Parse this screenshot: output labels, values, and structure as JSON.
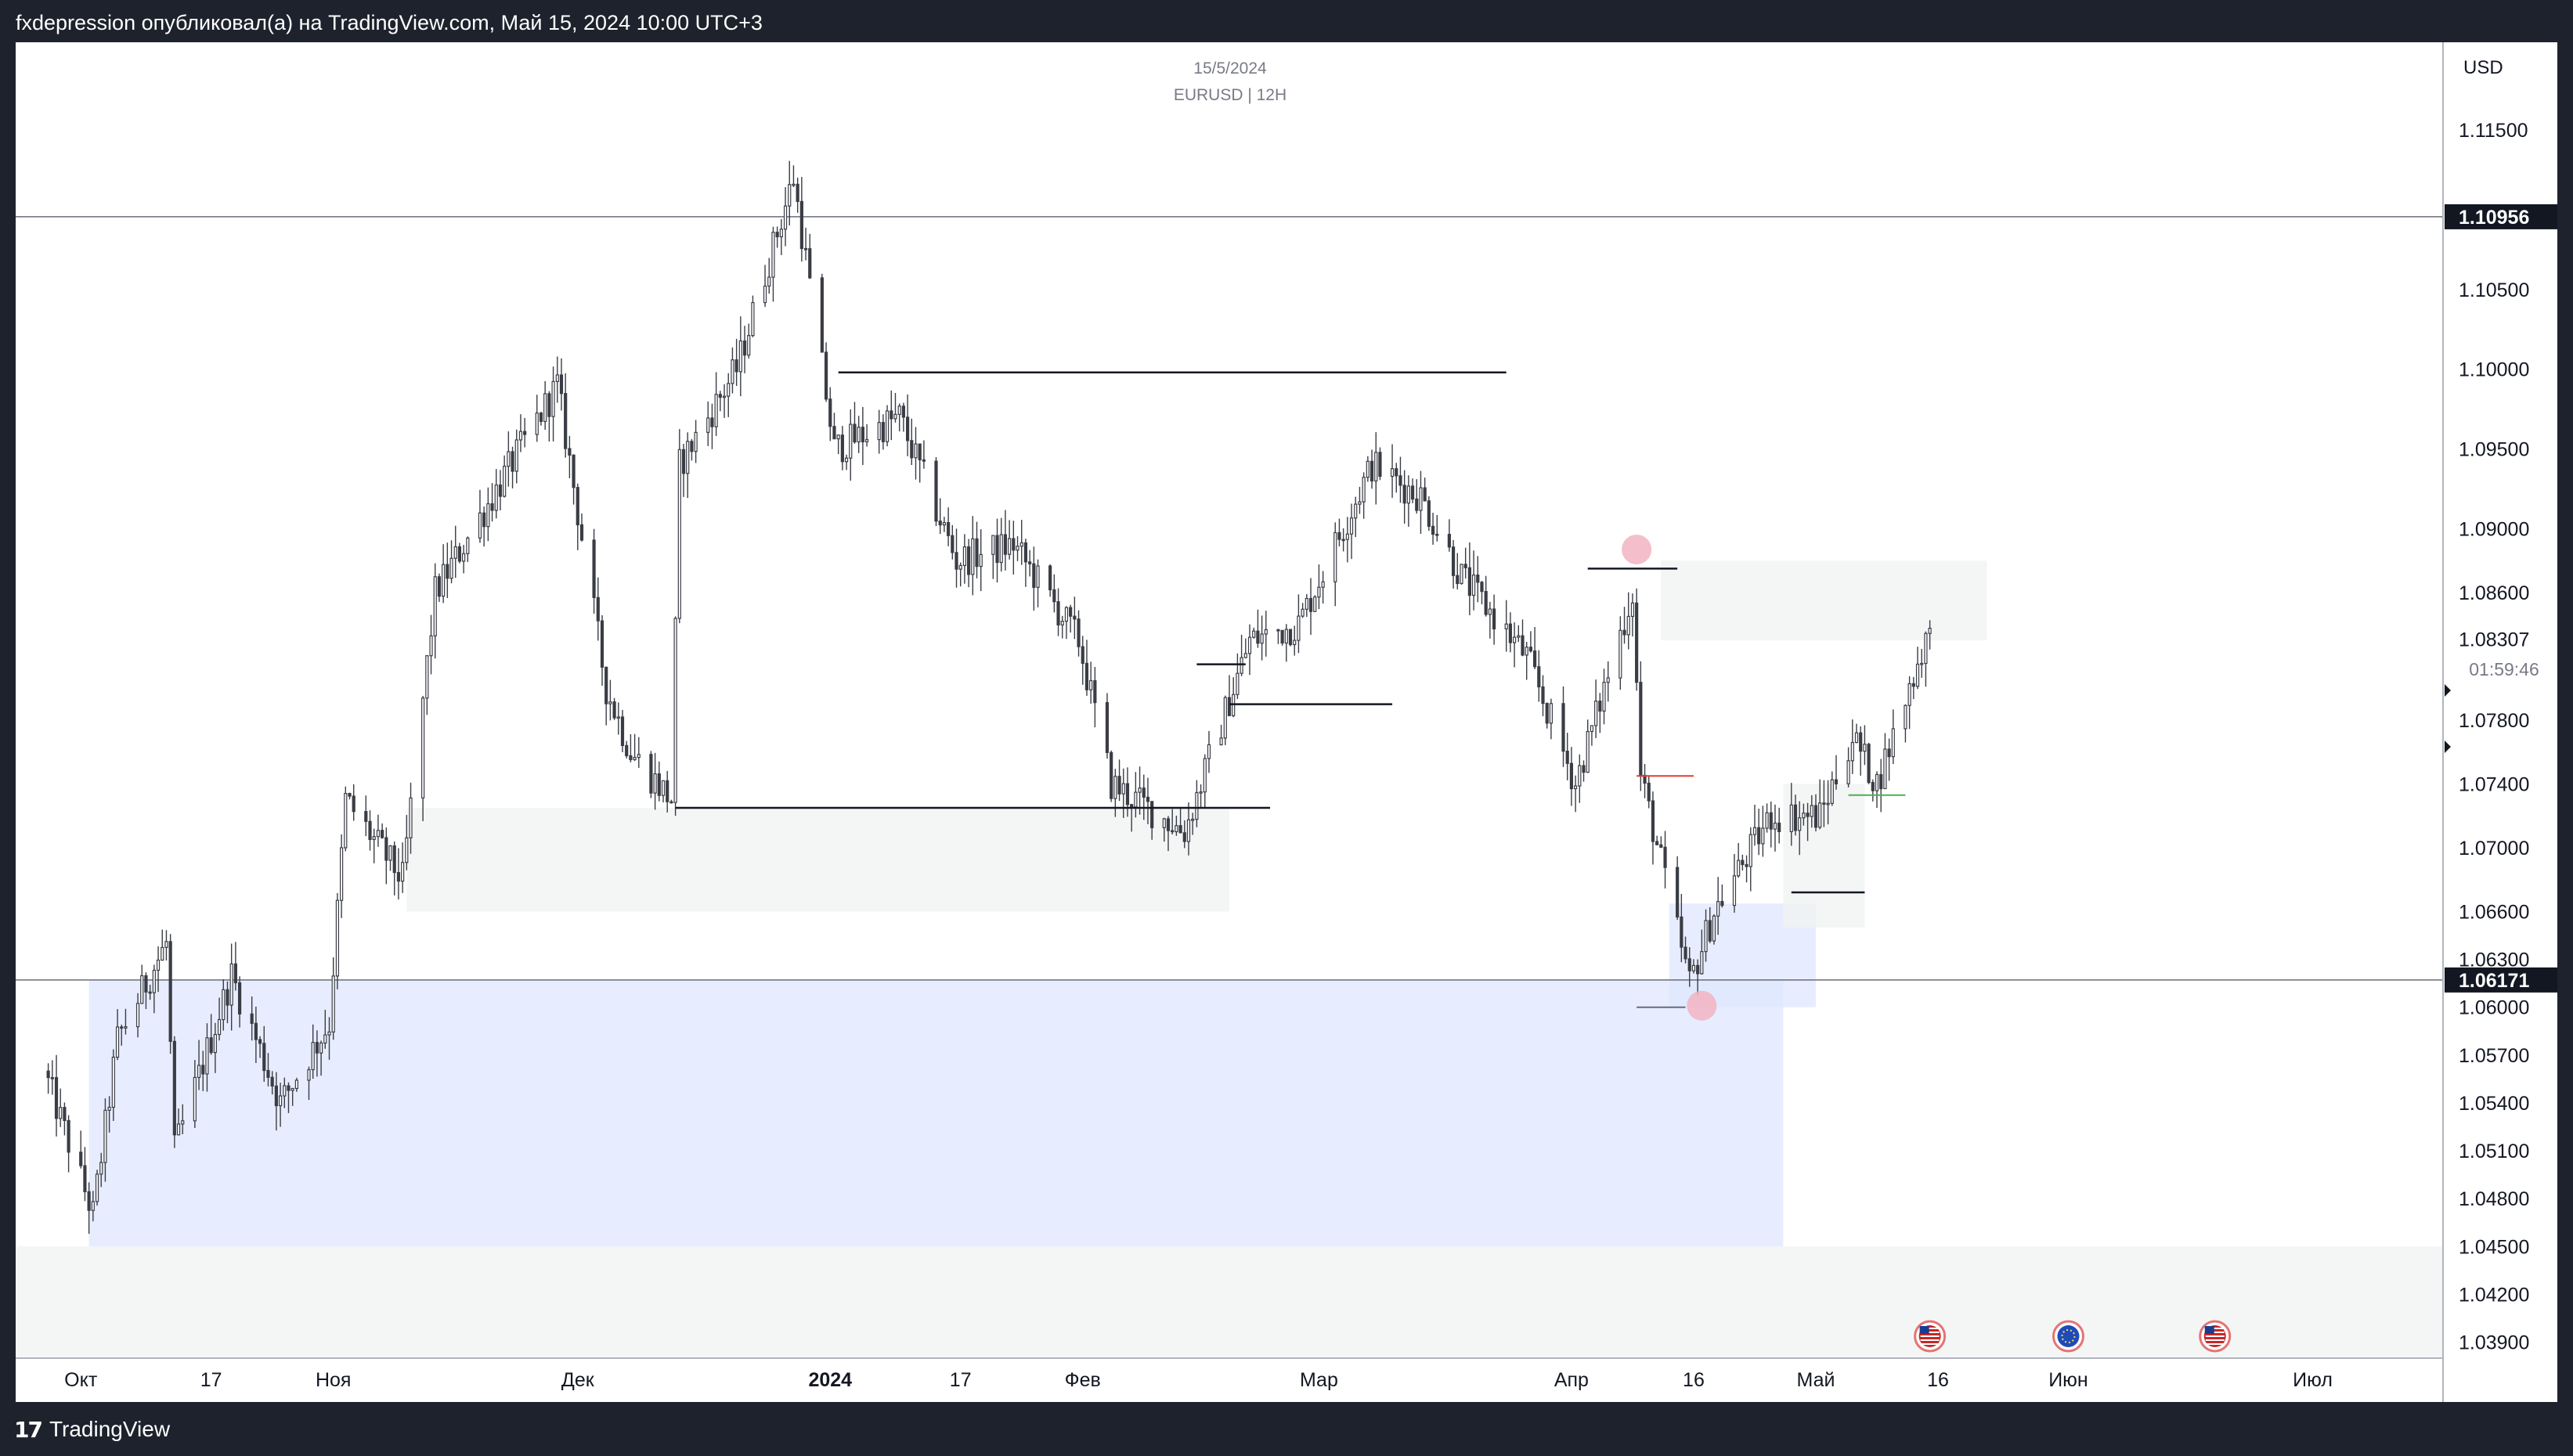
{
  "header": {
    "published_text": "fxdepression опубликовал(а) на TradingView.com, Май 15, 2024 10:00 UTC+3"
  },
  "chart": {
    "date_label": "15/5/2024",
    "symbol_label": "EURUSD | 12H",
    "currency": "USD",
    "countdown": "01:59:46"
  },
  "footer": {
    "brand": "TradingView"
  },
  "colors": {
    "candle_up": "#ffffff",
    "candle_down": "#3a3d45",
    "zone_blue": "#dfe7fd",
    "zone_gray": "#f1f2f3",
    "pivot_marker": "#f2b3c2",
    "price_tag_bg": "#131722",
    "level_line": "#6a6d78",
    "green_line": "#4caf50",
    "red_line": "#e53935"
  },
  "chart_data": {
    "type": "candlestick",
    "symbol": "EURUSD",
    "timeframe": "12H",
    "x_tick_labels": [
      "Окт",
      "17",
      "Ноя",
      "Дек",
      "2024",
      "17",
      "Фев",
      "Мар",
      "Апр",
      "16",
      "Май",
      "16",
      "Июн",
      "Июл"
    ],
    "y_tick_labels": [
      "1.11500",
      "1.10500",
      "1.10000",
      "1.09500",
      "1.09000",
      "1.08600",
      "1.07800",
      "1.07400",
      "1.07000",
      "1.06600",
      "1.06300",
      "1.06000",
      "1.05700",
      "1.05400",
      "1.05100",
      "1.04800",
      "1.04500",
      "1.04200",
      "1.03900"
    ],
    "ylim": [
      1.038,
      1.1205
    ],
    "price_lines": [
      {
        "value": 1.10956,
        "label": "1.10956"
      },
      {
        "value": 1.06171,
        "label": "1.06171"
      }
    ],
    "last_price": {
      "value": 1.08307,
      "label": "1.08307"
    },
    "waypoints": [
      {
        "date": "2023-09-27",
        "close": 1.056
      },
      {
        "date": "2023-10-03",
        "close": 1.047
      },
      {
        "date": "2023-10-06",
        "close": 1.058
      },
      {
        "date": "2023-10-12",
        "close": 1.064
      },
      {
        "date": "2023-10-13",
        "close": 1.051
      },
      {
        "date": "2023-10-20",
        "close": 1.062
      },
      {
        "date": "2023-10-26",
        "close": 1.054
      },
      {
        "date": "2023-11-01",
        "close": 1.059
      },
      {
        "date": "2023-11-03",
        "close": 1.073
      },
      {
        "date": "2023-11-10",
        "close": 1.068
      },
      {
        "date": "2023-11-14",
        "close": 1.086
      },
      {
        "date": "2023-11-21",
        "close": 1.092
      },
      {
        "date": "2023-11-29",
        "close": 1.099
      },
      {
        "date": "2023-12-05",
        "close": 1.08
      },
      {
        "date": "2023-12-08",
        "close": 1.076
      },
      {
        "date": "2023-12-13",
        "close": 1.073
      },
      {
        "date": "2023-12-14",
        "close": 1.094
      },
      {
        "date": "2023-12-21",
        "close": 1.1
      },
      {
        "date": "2023-12-28",
        "close": 1.112
      },
      {
        "date": "2024-01-02",
        "close": 1.095
      },
      {
        "date": "2024-01-10",
        "close": 1.097
      },
      {
        "date": "2024-01-17",
        "close": 1.088
      },
      {
        "date": "2024-01-24",
        "close": 1.089
      },
      {
        "date": "2024-02-01",
        "close": 1.083
      },
      {
        "date": "2024-02-05",
        "close": 1.074
      },
      {
        "date": "2024-02-14",
        "close": 1.071
      },
      {
        "date": "2024-02-22",
        "close": 1.083
      },
      {
        "date": "2024-02-28",
        "close": 1.084
      },
      {
        "date": "2024-03-08",
        "close": 1.094
      },
      {
        "date": "2024-03-14",
        "close": 1.092
      },
      {
        "date": "2024-03-19",
        "close": 1.087
      },
      {
        "date": "2024-03-27",
        "close": 1.082
      },
      {
        "date": "2024-04-02",
        "close": 1.074
      },
      {
        "date": "2024-04-09",
        "close": 1.086
      },
      {
        "date": "2024-04-10",
        "close": 1.0745
      },
      {
        "date": "2024-04-16",
        "close": 1.0615
      },
      {
        "date": "2024-04-19",
        "close": 1.066
      },
      {
        "date": "2024-04-26",
        "close": 1.072
      },
      {
        "date": "2024-05-02",
        "close": 1.072
      },
      {
        "date": "2024-05-06",
        "close": 1.077
      },
      {
        "date": "2024-05-09",
        "close": 1.074
      },
      {
        "date": "2024-05-15",
        "close": 1.0831
      }
    ],
    "zones": [
      {
        "from_date": "2023-10-02",
        "to_date": "2024-04-27",
        "low": 1.045,
        "high": 1.0617,
        "style": "blue"
      },
      {
        "from_date": "2024-04-13",
        "to_date": "2024-05-01",
        "low": 1.06,
        "high": 1.0665,
        "style": "blue"
      },
      {
        "from_date": "2023-11-10",
        "to_date": "2024-02-19",
        "low": 1.066,
        "high": 1.0725,
        "style": "gray"
      },
      {
        "from_date": "2024-04-12",
        "to_date": "2024-05-22",
        "low": 1.083,
        "high": 1.088,
        "style": "gray"
      },
      {
        "from_date": "2024-04-27",
        "to_date": "2024-05-07",
        "low": 1.065,
        "high": 1.074,
        "style": "gray"
      },
      {
        "from_date": "2023-09-23",
        "to_date": "2024-07-17",
        "low": 1.038,
        "high": 1.045,
        "style": "gray"
      }
    ],
    "horizontal_segments": [
      {
        "from_date": "2024-01-02",
        "to_date": "2024-03-24",
        "value": 1.0998,
        "color": "black"
      },
      {
        "from_date": "2023-12-13",
        "to_date": "2024-02-24",
        "value": 1.0725,
        "color": "black"
      },
      {
        "from_date": "2024-02-19",
        "to_date": "2024-03-10",
        "value": 1.079,
        "color": "black"
      },
      {
        "from_date": "2024-02-15",
        "to_date": "2024-02-21",
        "value": 1.0815,
        "color": "black"
      },
      {
        "from_date": "2024-04-03",
        "to_date": "2024-04-14",
        "value": 1.0875,
        "color": "black"
      },
      {
        "from_date": "2024-04-28",
        "to_date": "2024-05-07",
        "value": 1.0672,
        "color": "black"
      },
      {
        "from_date": "2024-05-05",
        "to_date": "2024-05-12",
        "value": 1.0733,
        "color": "green"
      },
      {
        "from_date": "2024-04-09",
        "to_date": "2024-04-16",
        "value": 1.0745,
        "color": "red"
      },
      {
        "from_date": "2024-04-09",
        "to_date": "2024-04-15",
        "value": 1.06,
        "color": "gray"
      }
    ],
    "pivot_markers": [
      {
        "date": "2024-04-09",
        "value": 1.0887
      },
      {
        "date": "2024-04-17",
        "value": 1.0601
      }
    ],
    "events": [
      {
        "date": "2024-05-15",
        "icon": "us-flag-icon"
      },
      {
        "date": "2024-06-01",
        "icon": "eu-flag-icon"
      },
      {
        "date": "2024-06-19",
        "icon": "us-flag-icon"
      }
    ],
    "grid": false,
    "legend": "none"
  }
}
